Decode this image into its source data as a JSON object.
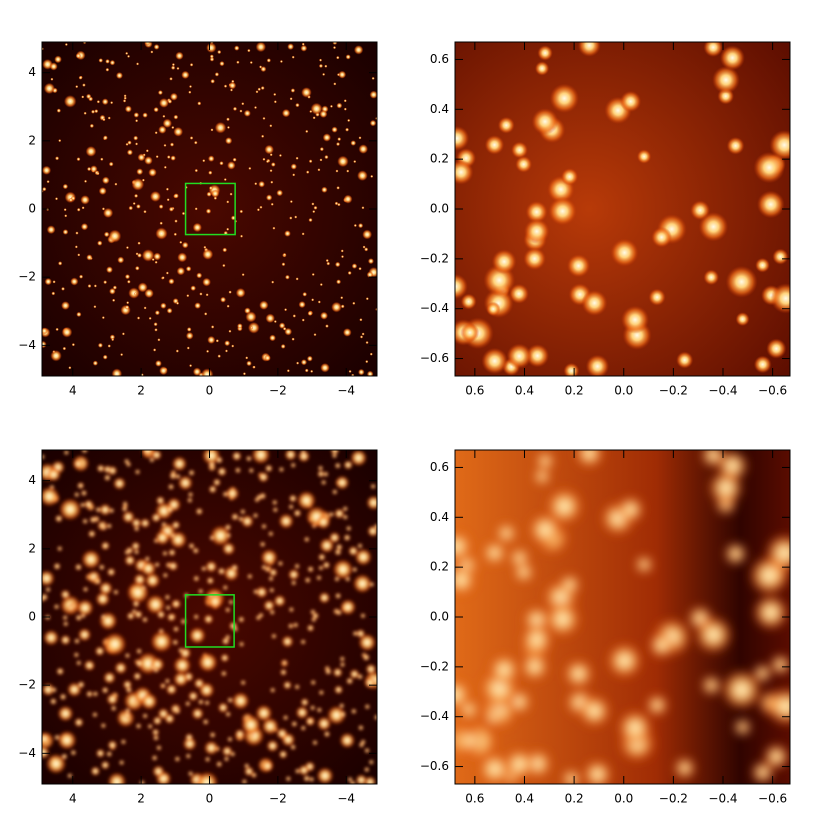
{
  "chart_data": [
    {
      "type": "image",
      "xlim": [
        4.9,
        -4.9
      ],
      "ylim": [
        -4.9,
        4.9
      ],
      "xticks": [
        4,
        2,
        0,
        {
          "value": -2,
          "label": "−2"
        },
        {
          "value": -4,
          "label": "−4"
        }
      ],
      "yticks": [
        {
          "value": -4,
          "label": "−4"
        },
        {
          "value": -2,
          "label": "−2"
        },
        0,
        2,
        4
      ],
      "box": {
        "x": [
          0.7,
          -0.75
        ],
        "y": [
          -0.75,
          0.75
        ]
      }
    },
    {
      "type": "image",
      "xlim": [
        0.68,
        -0.67
      ],
      "ylim": [
        -0.67,
        0.67
      ],
      "xticks": [
        0.6,
        0.4,
        0.2,
        {
          "value": 0,
          "label": "0.0"
        },
        {
          "value": -0.2,
          "label": "−0.2"
        },
        {
          "value": -0.4,
          "label": "−0.4"
        },
        {
          "value": -0.6,
          "label": "−0.6"
        }
      ],
      "yticks": [
        {
          "value": -0.6,
          "label": "−0.6"
        },
        {
          "value": -0.4,
          "label": "−0.4"
        },
        {
          "value": -0.2,
          "label": "−0.2"
        },
        {
          "value": 0,
          "label": "0.0"
        },
        0.2,
        0.4,
        0.6
      ]
    },
    {
      "type": "image",
      "xlim": [
        4.9,
        -4.9
      ],
      "ylim": [
        -4.9,
        4.9
      ],
      "xticks": [
        4,
        2,
        0,
        {
          "value": -2,
          "label": "−2"
        },
        {
          "value": -4,
          "label": "−4"
        }
      ],
      "yticks": [
        {
          "value": -4,
          "label": "−4"
        },
        {
          "value": -2,
          "label": "−2"
        },
        0,
        2,
        4
      ],
      "box": {
        "x": [
          0.7,
          -0.72
        ],
        "y": [
          -0.88,
          0.65
        ]
      }
    },
    {
      "type": "image",
      "xlim": [
        0.68,
        -0.67
      ],
      "ylim": [
        -0.67,
        0.67
      ],
      "xticks": [
        0.6,
        0.4,
        0.2,
        {
          "value": 0,
          "label": "0.0"
        },
        {
          "value": -0.2,
          "label": "−0.2"
        },
        {
          "value": -0.4,
          "label": "−0.4"
        },
        {
          "value": -0.6,
          "label": "−0.6"
        }
      ],
      "yticks": [
        {
          "value": -0.6,
          "label": "−0.6"
        },
        {
          "value": -0.4,
          "label": "−0.4"
        },
        {
          "value": -0.2,
          "label": "−0.2"
        },
        {
          "value": 0,
          "label": "0.0"
        },
        0.2,
        0.4,
        0.6
      ]
    }
  ]
}
